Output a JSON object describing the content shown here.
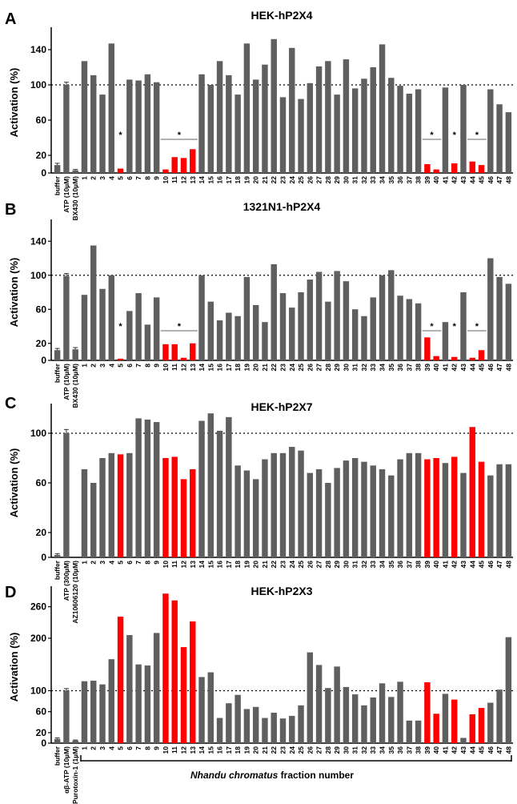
{
  "figure": {
    "xlabel_italic": "Nhandu chromatus",
    "xlabel_rest": " fraction number",
    "colors": {
      "bar": "#5f5f5f",
      "highlight": "#ff0000",
      "axis": "#000000"
    }
  },
  "chart_data": [
    {
      "type": "bar",
      "panel_label": "A",
      "title": "HEK-hP2X4",
      "ylabel": "Activation (%)",
      "ylim": [
        0,
        160
      ],
      "yticks": [
        20,
        60,
        100,
        140
      ],
      "reference_line": 100,
      "control_labels": [
        "buffer",
        "ATP (10µM)",
        "BX430 (10µM)"
      ],
      "control_values": [
        9,
        100,
        3
      ],
      "control_errors": [
        2,
        3,
        1
      ],
      "fractions": [
        "1",
        "2",
        "3",
        "4",
        "5",
        "6",
        "7",
        "8",
        "9",
        "10",
        "11",
        "12",
        "13",
        "14",
        "15",
        "16",
        "17",
        "18",
        "19",
        "20",
        "21",
        "22",
        "23",
        "24",
        "25",
        "26",
        "27",
        "28",
        "29",
        "30",
        "31",
        "32",
        "33",
        "34",
        "35",
        "36",
        "37",
        "38",
        "39",
        "40",
        "41",
        "42",
        "43",
        "44",
        "45",
        "46",
        "47",
        "48"
      ],
      "values": [
        127,
        111,
        89,
        147,
        5,
        106,
        105,
        112,
        103,
        4,
        18,
        17,
        27,
        112,
        100,
        127,
        111,
        89,
        147,
        106,
        123,
        152,
        86,
        142,
        84,
        102,
        121,
        127,
        89,
        129,
        96,
        107,
        120,
        146,
        108,
        99,
        90,
        95,
        10,
        4,
        97,
        11,
        100,
        13,
        9,
        95,
        78,
        69
      ],
      "highlighted_fractions": [
        "5",
        "10",
        "11",
        "12",
        "13",
        "39",
        "40",
        "42",
        "44",
        "45"
      ],
      "significance": [
        {
          "label": "*",
          "from": "5",
          "to": "5",
          "bracket": false
        },
        {
          "label": "*",
          "from": "10",
          "to": "13",
          "bracket": true
        },
        {
          "label": "*",
          "from": "39",
          "to": "40",
          "bracket": true
        },
        {
          "label": "*",
          "from": "42",
          "to": "42",
          "bracket": false
        },
        {
          "label": "*",
          "from": "44",
          "to": "45",
          "bracket": true
        }
      ]
    },
    {
      "type": "bar",
      "panel_label": "B",
      "title": "1321N1-hP2X4",
      "ylabel": "Activation (%)",
      "ylim": [
        0,
        160
      ],
      "yticks": [
        20,
        60,
        100,
        140
      ],
      "reference_line": 100,
      "control_labels": [
        "buffer",
        "ATP (10µM)",
        "BX430 (10µM)"
      ],
      "control_values": [
        12,
        99,
        13
      ],
      "control_errors": [
        2,
        3,
        2
      ],
      "fractions": [
        "1",
        "2",
        "3",
        "4",
        "5",
        "6",
        "7",
        "8",
        "9",
        "10",
        "11",
        "12",
        "13",
        "14",
        "15",
        "16",
        "17",
        "18",
        "19",
        "20",
        "21",
        "22",
        "23",
        "24",
        "25",
        "26",
        "27",
        "28",
        "29",
        "30",
        "31",
        "32",
        "33",
        "34",
        "35",
        "36",
        "37",
        "38",
        "39",
        "40",
        "41",
        "42",
        "43",
        "44",
        "45",
        "46",
        "47",
        "48"
      ],
      "values": [
        77,
        135,
        84,
        100,
        2,
        58,
        79,
        42,
        74,
        19,
        19,
        3,
        20,
        100,
        69,
        47,
        56,
        52,
        98,
        65,
        45,
        113,
        79,
        62,
        80,
        95,
        104,
        69,
        105,
        93,
        60,
        52,
        74,
        100,
        106,
        76,
        72,
        67,
        27,
        5,
        45,
        4,
        80,
        3,
        12,
        120,
        98,
        90
      ],
      "highlighted_fractions": [
        "5",
        "10",
        "11",
        "12",
        "13",
        "39",
        "40",
        "42",
        "44",
        "45"
      ],
      "significance": [
        {
          "label": "*",
          "from": "5",
          "to": "5",
          "bracket": false
        },
        {
          "label": "*",
          "from": "10",
          "to": "13",
          "bracket": true
        },
        {
          "label": "*",
          "from": "39",
          "to": "40",
          "bracket": true
        },
        {
          "label": "*",
          "from": "42",
          "to": "42",
          "bracket": false
        },
        {
          "label": "*",
          "from": "44",
          "to": "45",
          "bracket": true
        }
      ]
    },
    {
      "type": "bar",
      "panel_label": "C",
      "title": "HEK-hP2X7",
      "ylabel": "Activation (%)",
      "ylim": [
        0,
        120
      ],
      "yticks": [
        20,
        60,
        100
      ],
      "reference_line": 100,
      "control_labels": [
        "buffer",
        "ATP (300µM)",
        "AZ10606120 (10µM)"
      ],
      "control_values": [
        2,
        100,
        0
      ],
      "control_errors": [
        1,
        3,
        0
      ],
      "fractions": [
        "1",
        "2",
        "3",
        "4",
        "5",
        "6",
        "7",
        "8",
        "9",
        "10",
        "11",
        "12",
        "13",
        "14",
        "15",
        "16",
        "17",
        "18",
        "19",
        "20",
        "21",
        "22",
        "23",
        "24",
        "25",
        "26",
        "27",
        "28",
        "29",
        "30",
        "31",
        "32",
        "33",
        "34",
        "35",
        "36",
        "37",
        "38",
        "39",
        "40",
        "41",
        "42",
        "43",
        "44",
        "45",
        "46",
        "47",
        "48"
      ],
      "values": [
        71,
        60,
        80,
        84,
        83,
        84,
        112,
        111,
        109,
        80,
        81,
        63,
        71,
        110,
        116,
        102,
        113,
        74,
        70,
        63,
        79,
        84,
        84,
        89,
        86,
        68,
        71,
        60,
        72,
        78,
        80,
        77,
        74,
        71,
        66,
        79,
        84,
        84,
        79,
        80,
        76,
        81,
        68,
        105,
        77,
        66,
        75,
        75
      ],
      "highlighted_fractions": [
        "5",
        "10",
        "11",
        "12",
        "13",
        "39",
        "40",
        "42",
        "44",
        "45"
      ],
      "significance": []
    },
    {
      "type": "bar",
      "panel_label": "D",
      "title": "HEK-hP2X3",
      "ylabel": "Activation (%)",
      "ylim": [
        0,
        290
      ],
      "yticks": [
        20,
        60,
        100,
        200,
        260
      ],
      "reference_line": 100,
      "control_labels": [
        "buffer",
        "αβ-ATP (10µM)",
        "Purotoxin-1 (1µM)"
      ],
      "control_values": [
        8,
        100,
        5
      ],
      "control_errors": [
        2,
        4,
        1
      ],
      "fractions": [
        "1",
        "2",
        "3",
        "4",
        "5",
        "6",
        "7",
        "8",
        "9",
        "10",
        "11",
        "12",
        "13",
        "14",
        "15",
        "16",
        "17",
        "18",
        "19",
        "20",
        "21",
        "22",
        "23",
        "24",
        "25",
        "26",
        "27",
        "28",
        "29",
        "30",
        "31",
        "32",
        "33",
        "34",
        "35",
        "36",
        "37",
        "38",
        "39",
        "40",
        "41",
        "42",
        "43",
        "44",
        "45",
        "46",
        "47",
        "48"
      ],
      "values": [
        118,
        119,
        112,
        160,
        241,
        206,
        150,
        148,
        210,
        285,
        272,
        183,
        232,
        126,
        135,
        48,
        76,
        92,
        65,
        69,
        48,
        58,
        47,
        52,
        72,
        173,
        149,
        105,
        146,
        107,
        93,
        72,
        87,
        114,
        88,
        117,
        43,
        43,
        116,
        56,
        94,
        83,
        10,
        55,
        67,
        77,
        102,
        202
      ],
      "highlighted_fractions": [
        "5",
        "10",
        "11",
        "12",
        "13",
        "39",
        "40",
        "42",
        "44",
        "45"
      ],
      "significance": []
    }
  ]
}
